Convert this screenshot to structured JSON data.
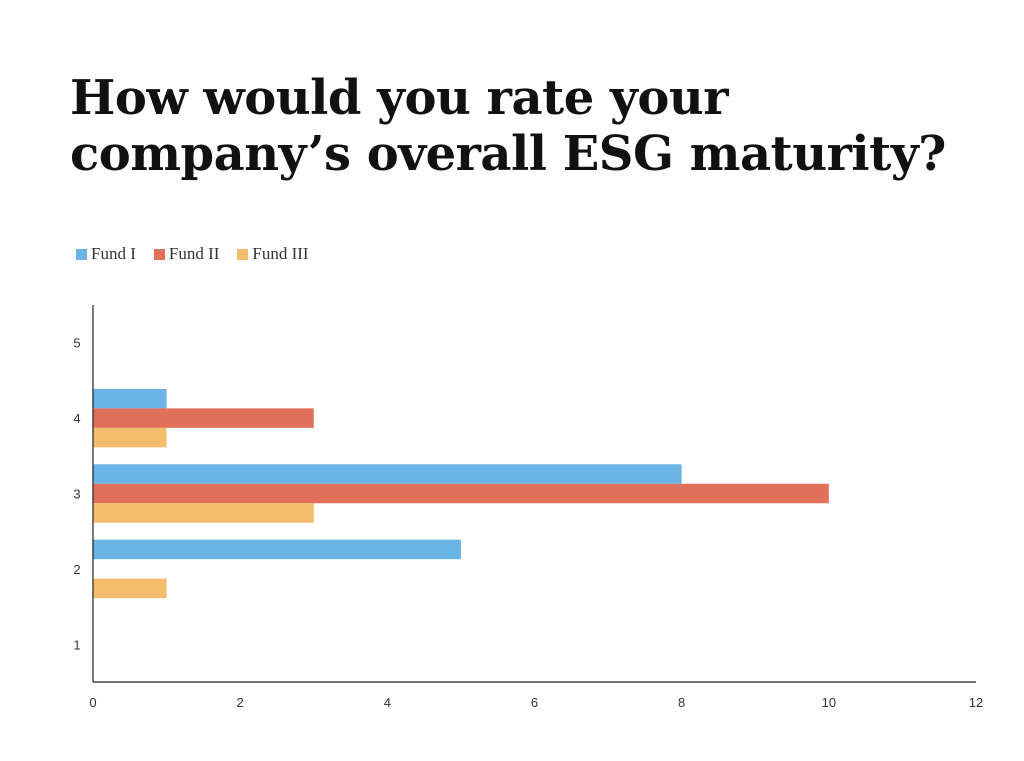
{
  "chart_data": {
    "type": "bar",
    "orientation": "horizontal",
    "title": "How would you rate your company’s overall ESG maturity?",
    "categories": [
      "1",
      "2",
      "3",
      "4",
      "5"
    ],
    "series": [
      {
        "name": "Fund I",
        "color": "#6bb5e6",
        "values": [
          0,
          5,
          8,
          1,
          0
        ]
      },
      {
        "name": "Fund II",
        "color": "#e0705a",
        "values": [
          0,
          0,
          10,
          3,
          0
        ]
      },
      {
        "name": "Fund III",
        "color": "#f4bd6e",
        "values": [
          0,
          1,
          3,
          1,
          0
        ]
      }
    ],
    "xlim": [
      0,
      12
    ],
    "x_ticks": [
      0,
      2,
      4,
      6,
      8,
      10,
      12
    ],
    "xlabel": "",
    "ylabel": "",
    "legend_position": "top-left",
    "grid": false
  }
}
